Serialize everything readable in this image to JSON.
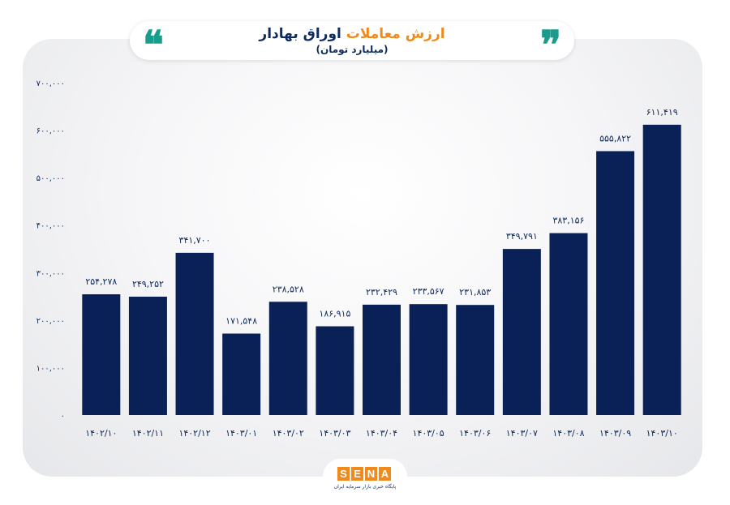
{
  "header": {
    "title_part_accent": "ارزش معاملات",
    "title_part_main": "اوراق بهادار",
    "subtitle": "(میلیارد تومان)",
    "quote_open": "❝",
    "quote_close": "❞"
  },
  "logo": {
    "letters": [
      "S",
      "E",
      "N",
      "A"
    ],
    "tagline": "پایگاه خبری بازار سرمایه ایران"
  },
  "colors": {
    "bar": "#0a2158",
    "accent": "#f08a1c",
    "teal": "#1a9c8c",
    "text": "#0f2a5c"
  },
  "chart_data": {
    "type": "bar",
    "title": "ارزش معاملات اوراق بهادار (میلیارد تومان)",
    "xlabel": "",
    "ylabel": "",
    "ylim": [
      0,
      700000
    ],
    "yticks": [
      0,
      100000,
      200000,
      300000,
      400000,
      500000,
      600000,
      700000
    ],
    "ytick_labels": [
      "۰",
      "۱۰۰,۰۰۰",
      "۲۰۰,۰۰۰",
      "۳۰۰,۰۰۰",
      "۴۰۰,۰۰۰",
      "۵۰۰,۰۰۰",
      "۶۰۰,۰۰۰",
      "۷۰۰,۰۰۰"
    ],
    "grid": false,
    "categories": [
      "۱۴۰۲/۱۰",
      "۱۴۰۲/۱۱",
      "۱۴۰۲/۱۲",
      "۱۴۰۳/۰۱",
      "۱۴۰۳/۰۲",
      "۱۴۰۳/۰۳",
      "۱۴۰۳/۰۴",
      "۱۴۰۳/۰۵",
      "۱۴۰۳/۰۶",
      "۱۴۰۳/۰۷",
      "۱۴۰۳/۰۸",
      "۱۴۰۳/۰۹",
      "۱۴۰۳/۱۰"
    ],
    "values": [
      254278,
      249252,
      341700,
      171548,
      238528,
      186915,
      232429,
      233567,
      231853,
      349791,
      383156,
      555822,
      611419
    ],
    "value_labels": [
      "۲۵۴,۲۷۸",
      "۲۴۹,۲۵۲",
      "۳۴۱,۷۰۰",
      "۱۷۱,۵۴۸",
      "۲۳۸,۵۲۸",
      "۱۸۶,۹۱۵",
      "۲۳۲,۴۲۹",
      "۲۳۳,۵۶۷",
      "۲۳۱,۸۵۳",
      "۳۴۹,۷۹۱",
      "۳۸۳,۱۵۶",
      "۵۵۵,۸۲۲",
      "۶۱۱,۴۱۹"
    ]
  }
}
